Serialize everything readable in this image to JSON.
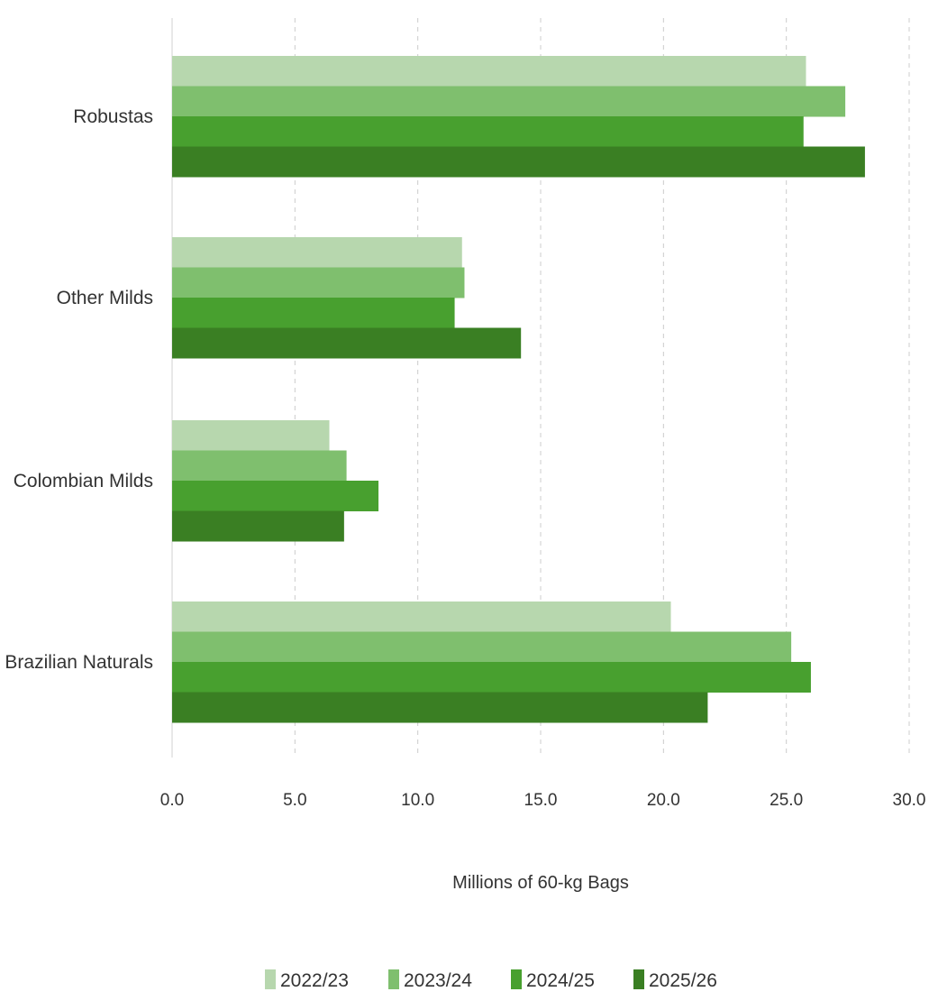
{
  "chart_data": {
    "type": "bar",
    "orientation": "horizontal",
    "categories": [
      "Robustas",
      "Other Milds",
      "Colombian Milds",
      "Brazilian Naturals"
    ],
    "series": [
      {
        "name": "2022/23",
        "values": [
          25.8,
          11.8,
          6.4,
          20.3
        ],
        "color": "#b7d7ae"
      },
      {
        "name": "2023/24",
        "values": [
          27.4,
          11.9,
          7.1,
          25.2
        ],
        "color": "#7fbf6e"
      },
      {
        "name": "2024/25",
        "values": [
          25.7,
          11.5,
          8.4,
          26.0
        ],
        "color": "#48a02f"
      },
      {
        "name": "2025/26",
        "values": [
          28.2,
          14.2,
          7.0,
          21.8
        ],
        "color": "#3a7f23"
      }
    ],
    "xlabel": "Millions of 60-kg Bags",
    "xlim": [
      0,
      30
    ],
    "xticks": [
      "0.0",
      "5.0",
      "10.0",
      "15.0",
      "20.0",
      "25.0",
      "30.0"
    ],
    "grid": "vertical-dashed",
    "legend": "bottom-center"
  }
}
